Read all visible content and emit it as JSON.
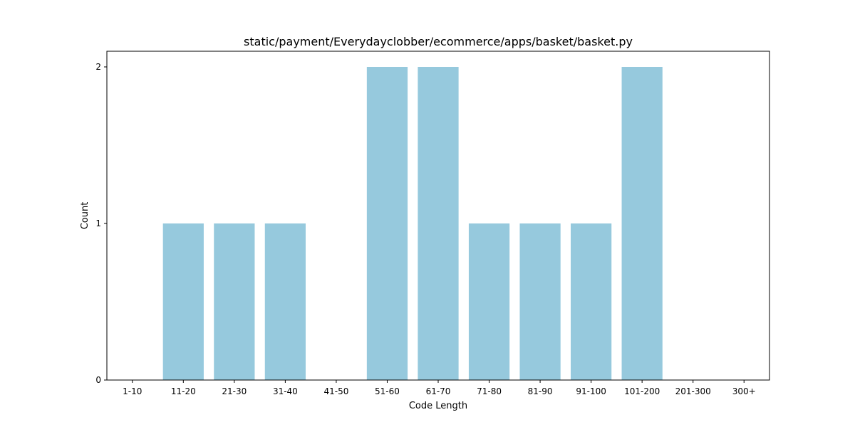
{
  "chart_data": {
    "type": "bar",
    "title": "static/payment/Everydayclobber/ecommerce/apps/basket/basket.py",
    "xlabel": "Code Length",
    "ylabel": "Count",
    "categories": [
      "1-10",
      "11-20",
      "21-30",
      "31-40",
      "41-50",
      "51-60",
      "61-70",
      "71-80",
      "81-90",
      "91-100",
      "101-200",
      "201-300",
      "300+"
    ],
    "values": [
      0,
      1,
      1,
      1,
      0,
      2,
      2,
      1,
      1,
      1,
      2,
      0,
      0
    ],
    "yticks": [
      "0",
      "1",
      "2"
    ],
    "ylim": [
      0,
      2.1
    ],
    "bar_color": "#96c9dd",
    "grid": false,
    "legend": false
  }
}
